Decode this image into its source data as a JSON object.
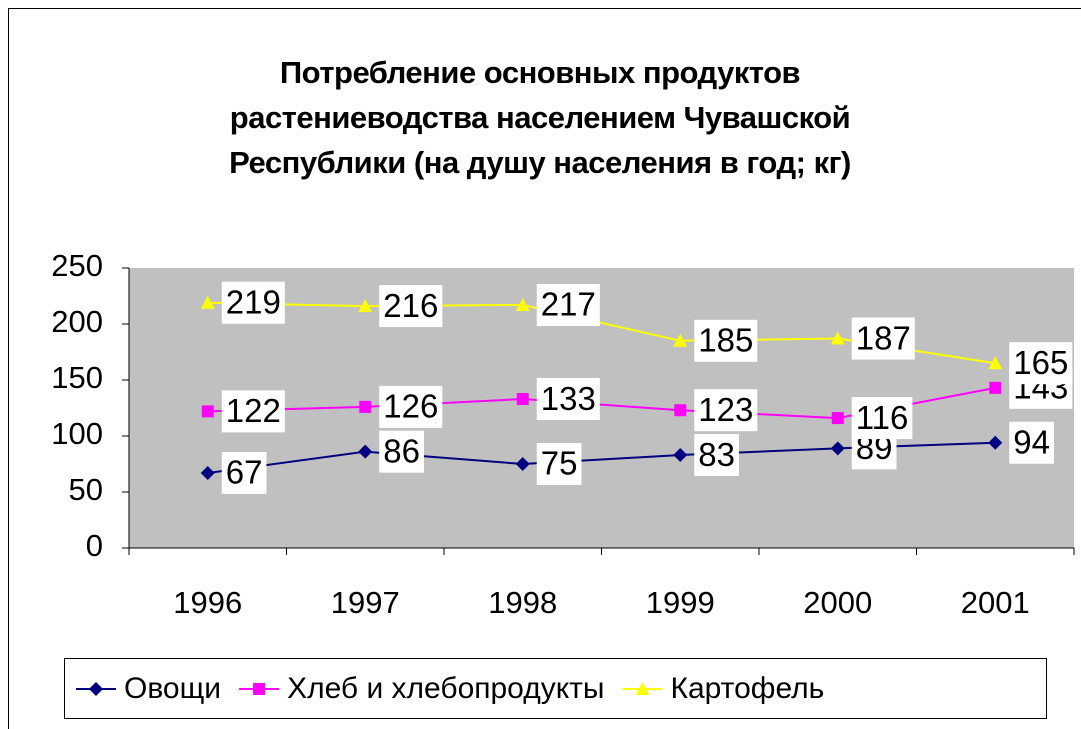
{
  "chart_data": {
    "type": "line",
    "title": "Потребление основных продуктов растениеводства населением Чувашской Республики (на душу населения в год; кг)",
    "categories": [
      "1996",
      "1997",
      "1998",
      "1999",
      "2000",
      "2001"
    ],
    "series": [
      {
        "name": "Овощи",
        "color": "#000080",
        "marker": "diamond",
        "values": [
          67,
          86,
          75,
          83,
          89,
          94
        ]
      },
      {
        "name": "Хлеб и хлебопродукты",
        "color": "#ff00ff",
        "marker": "square",
        "values": [
          122,
          126,
          133,
          123,
          116,
          143
        ]
      },
      {
        "name": "Картофель",
        "color": "#ffff00",
        "marker": "triangle",
        "values": [
          219,
          216,
          217,
          185,
          187,
          165
        ]
      }
    ],
    "ylim": [
      0,
      250
    ],
    "yticks": [
      0,
      50,
      100,
      150,
      200,
      250
    ],
    "grid": false,
    "legend": "bottom"
  }
}
